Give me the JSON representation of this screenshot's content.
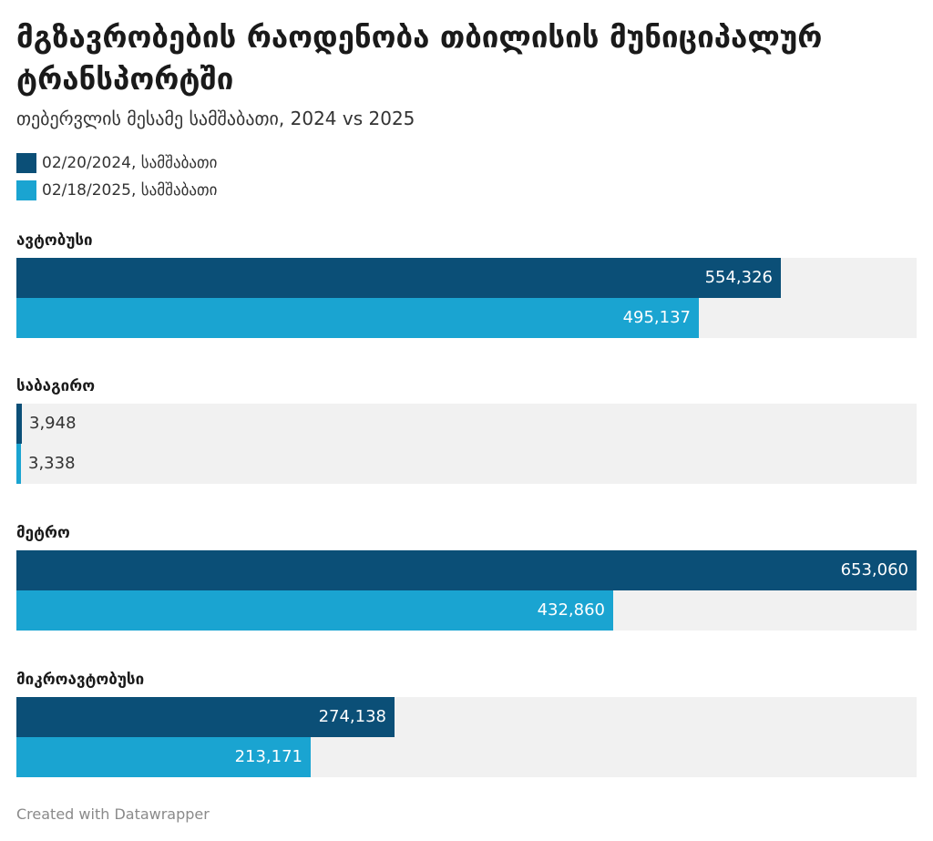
{
  "header": {
    "title": "მგზავრობების რაოდენობა თბილისის მუნიციპალურ ტრანსპორტში",
    "subtitle": "თებერვლის მესამე სამშაბათი, 2024 vs 2025"
  },
  "footer": {
    "credit": "Created with Datawrapper"
  },
  "colors": {
    "series_2024": "#0b4f77",
    "series_2025": "#1aa4d1",
    "track": "#f1f1f1"
  },
  "chart_data": {
    "type": "bar",
    "orientation": "horizontal",
    "title": "მგზავრობების რაოდენობა თბილისის მუნიციპალურ ტრანსპორტში",
    "subtitle": "თებერვლის მესამე სამშაბათი, 2024 vs 2025",
    "categories": [
      "ავტობუსი",
      "საბაგირო",
      "მეტრო",
      "მიკროავტობუსი"
    ],
    "series": [
      {
        "name": "02/20/2024, სამშაბათი",
        "values": [
          554326,
          3948,
          653060,
          274138
        ],
        "labels": [
          "554,326",
          "3,948",
          "653,060",
          "274,138"
        ]
      },
      {
        "name": "02/18/2025, სამშაბათი",
        "values": [
          495137,
          3338,
          432860,
          213171
        ],
        "labels": [
          "495,137",
          "3,338",
          "432,860",
          "213,171"
        ]
      }
    ],
    "xlim": [
      0,
      653060
    ],
    "legend": "top-left",
    "grid": false
  }
}
